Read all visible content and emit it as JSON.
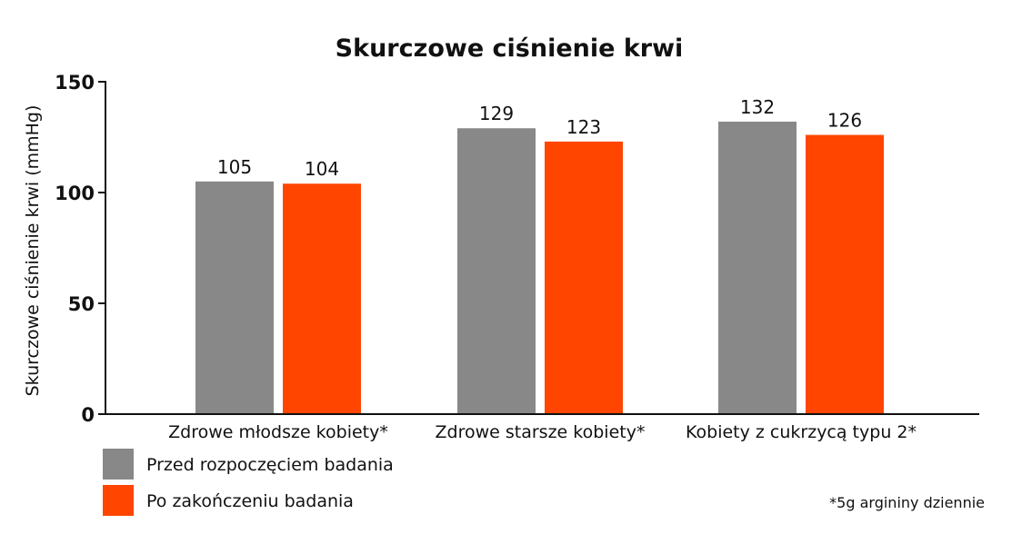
{
  "chart_data": {
    "type": "bar",
    "title": "Skurczowe ciśnienie krwi",
    "ylabel": "Skurczowe ciśnienie krwi (mmHg)",
    "xlabel": "",
    "ylim": [
      0,
      150
    ],
    "yticks": [
      0,
      50,
      100,
      150
    ],
    "categories": [
      "Zdrowe młodsze kobiety*",
      "Zdrowe starsze kobiety*",
      "Kobiety z cukrzycą typu 2*"
    ],
    "series": [
      {
        "name": "Przed rozpoczęciem badania",
        "color": "#888888",
        "values": [
          105,
          129,
          132
        ]
      },
      {
        "name": "Po zakończeniu badania",
        "color": "#ff4500",
        "values": [
          104,
          123,
          126
        ]
      }
    ],
    "grid": false,
    "legend_position": "bottom-left",
    "footnote": "*5g argininy dziennie"
  }
}
